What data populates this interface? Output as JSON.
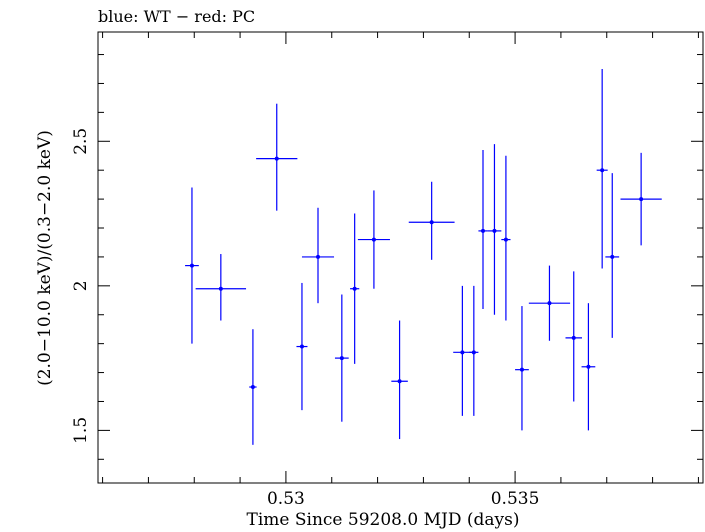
{
  "chart_data": {
    "type": "scatter",
    "title": "blue: WT − red: PC",
    "xlabel": "Time Since 59208.0 MJD (days)",
    "ylabel": "(2.0−10.0 keV)/(0.3−2.0 keV)",
    "xlim": [
      0.5259,
      0.5391
    ],
    "ylim": [
      1.318,
      2.878
    ],
    "xticks_labeled": [
      0.53,
      0.535
    ],
    "xtick_labels": [
      "0.53",
      "0.535"
    ],
    "xticks_minor_step": 0.001,
    "yticks_labeled": [
      1.5,
      2,
      2.5
    ],
    "ytick_labels": [
      "1.5",
      "2",
      "2.5"
    ],
    "yticks_minor_step": 0.1,
    "grid": false,
    "colors": {
      "WT": "#0000ff",
      "PC": "#ff0000",
      "axes": "#000000"
    },
    "series": [
      {
        "name": "WT",
        "points": [
          {
            "x": 0.52795,
            "xerr": 0.00015,
            "y": 2.07,
            "ylo": 1.8,
            "yhi": 2.34
          },
          {
            "x": 0.52858,
            "xerr": 0.00055,
            "y": 1.99,
            "ylo": 1.88,
            "yhi": 2.11
          },
          {
            "x": 0.52928,
            "xerr": 8e-05,
            "y": 1.65,
            "ylo": 1.45,
            "yhi": 1.85
          },
          {
            "x": 0.5298,
            "xerr": 0.00045,
            "y": 2.44,
            "ylo": 2.26,
            "yhi": 2.63
          },
          {
            "x": 0.53035,
            "xerr": 0.00012,
            "y": 1.79,
            "ylo": 1.57,
            "yhi": 2.01
          },
          {
            "x": 0.5307,
            "xerr": 0.00035,
            "y": 2.1,
            "ylo": 1.94,
            "yhi": 2.27
          },
          {
            "x": 0.53122,
            "xerr": 0.00015,
            "y": 1.75,
            "ylo": 1.53,
            "yhi": 1.97
          },
          {
            "x": 0.5315,
            "xerr": 0.0001,
            "y": 1.99,
            "ylo": 1.73,
            "yhi": 2.25
          },
          {
            "x": 0.53192,
            "xerr": 0.00035,
            "y": 2.16,
            "ylo": 1.99,
            "yhi": 2.33
          },
          {
            "x": 0.53248,
            "xerr": 0.00018,
            "y": 1.67,
            "ylo": 1.47,
            "yhi": 1.88
          },
          {
            "x": 0.53318,
            "xerr": 0.0005,
            "y": 2.22,
            "ylo": 2.09,
            "yhi": 2.36
          },
          {
            "x": 0.53385,
            "xerr": 0.0002,
            "y": 1.77,
            "ylo": 1.55,
            "yhi": 2.0
          },
          {
            "x": 0.5341,
            "xerr": 0.0001,
            "y": 1.77,
            "ylo": 1.55,
            "yhi": 2.0
          },
          {
            "x": 0.5343,
            "xerr": 0.0001,
            "y": 2.19,
            "ylo": 1.92,
            "yhi": 2.47
          },
          {
            "x": 0.53455,
            "xerr": 0.00015,
            "y": 2.19,
            "ylo": 1.9,
            "yhi": 2.49
          },
          {
            "x": 0.5348,
            "xerr": 0.0001,
            "y": 2.16,
            "ylo": 1.88,
            "yhi": 2.45
          },
          {
            "x": 0.53515,
            "xerr": 0.00015,
            "y": 1.71,
            "ylo": 1.5,
            "yhi": 1.93
          },
          {
            "x": 0.53575,
            "xerr": 0.00045,
            "y": 1.94,
            "ylo": 1.81,
            "yhi": 2.07
          },
          {
            "x": 0.53628,
            "xerr": 0.00018,
            "y": 1.82,
            "ylo": 1.6,
            "yhi": 2.05
          },
          {
            "x": 0.5366,
            "xerr": 0.00015,
            "y": 1.72,
            "ylo": 1.5,
            "yhi": 1.94
          },
          {
            "x": 0.5369,
            "xerr": 0.00012,
            "y": 2.4,
            "ylo": 2.06,
            "yhi": 2.75
          },
          {
            "x": 0.53712,
            "xerr": 0.00015,
            "y": 2.1,
            "ylo": 1.82,
            "yhi": 2.39
          },
          {
            "x": 0.53775,
            "xerr": 0.00045,
            "y": 2.3,
            "ylo": 2.14,
            "yhi": 2.46
          }
        ]
      },
      {
        "name": "PC",
        "points": []
      }
    ]
  }
}
